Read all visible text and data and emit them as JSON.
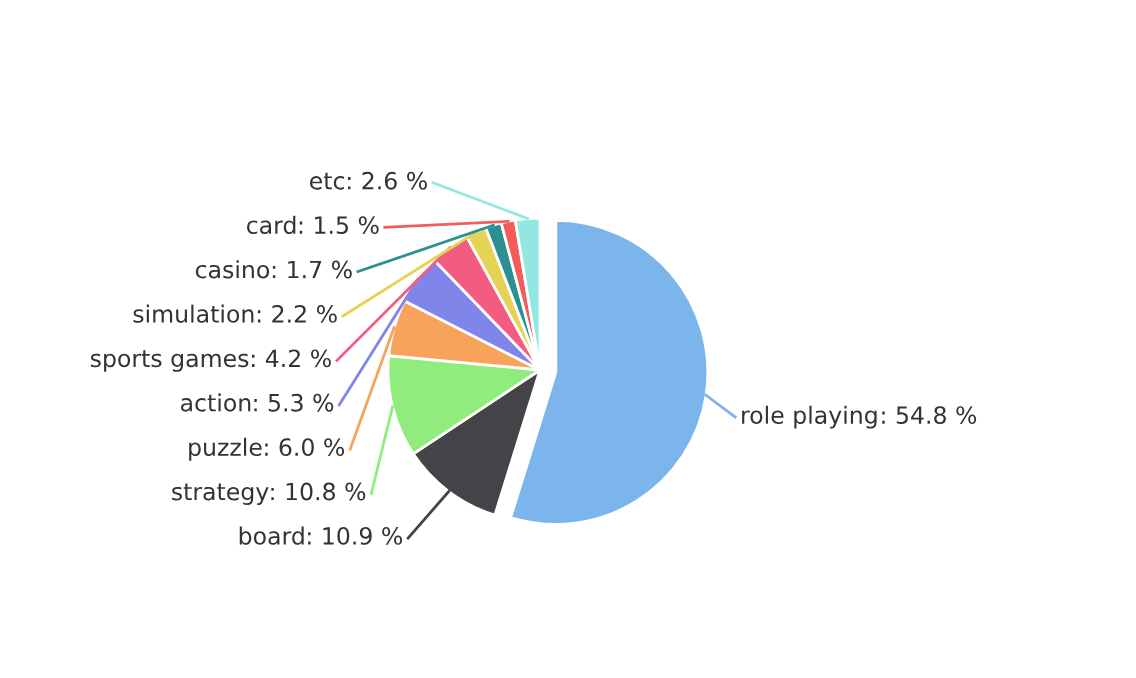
{
  "chart_data": {
    "type": "pie",
    "categories": [
      "role playing",
      "board",
      "strategy",
      "puzzle",
      "action",
      "sports games",
      "simulation",
      "casino",
      "card",
      "etc"
    ],
    "values": [
      54.8,
      10.9,
      10.8,
      6.0,
      5.3,
      4.2,
      2.2,
      1.7,
      1.5,
      2.6
    ],
    "colors": [
      "#7cb5ec",
      "#434348",
      "#90ed7d",
      "#f7a35c",
      "#8085e9",
      "#f15c80",
      "#e4d354",
      "#2b908f",
      "#f45b5b",
      "#91e8e1"
    ],
    "value_labels": [
      ": 54.8 %",
      ": 10.9 %",
      ": 10.8 %",
      ": 6.0 %",
      ": 5.3 %",
      ": 4.2 %",
      ": 2.2 %",
      ": 1.7 %",
      ": 1.5 %",
      ": 2.6 %"
    ]
  }
}
